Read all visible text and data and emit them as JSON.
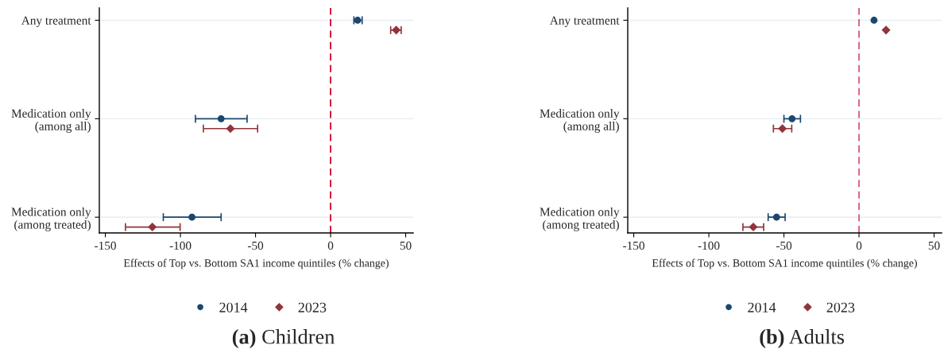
{
  "chart_data": [
    {
      "type": "scatter",
      "orientation": "horizontal",
      "title": "(a) Children",
      "xlabel": "Effects of Top vs. Bottom SA1 income quintiles (% change)",
      "categories": [
        "Any treatment",
        "Medication only\n(among all)",
        "Medication only\n(among treated)"
      ],
      "series": [
        {
          "name": "2014",
          "color": "#1a476f",
          "marker": "circle",
          "values": [
            18,
            -72.9,
            -92.3
          ],
          "errors": [
            [
              15.5,
              21
            ],
            [
              -90,
              -55.6
            ],
            [
              -111.4,
              -72.9
            ]
          ]
        },
        {
          "name": "2023",
          "color": "#90353b",
          "marker": "diamond",
          "values": [
            43.7,
            -66.7,
            -118.7
          ],
          "errors": [
            [
              40,
              47
            ],
            [
              -84.7,
              -48.6
            ],
            [
              -136.6,
              -100.2
            ]
          ]
        }
      ],
      "xlim": [
        -154,
        55
      ],
      "xticks": [
        {
          "value": -150,
          "label": "-150"
        },
        {
          "value": -100,
          "label": "-100"
        },
        {
          "value": -50,
          "label": "-50"
        },
        0,
        50
      ],
      "ref_lines": [
        {
          "axis": "x",
          "value": 0,
          "color": "#d6002b",
          "line_style": "dashed"
        }
      ],
      "grid": "y",
      "legend": "bottom"
    },
    {
      "type": "scatter",
      "orientation": "horizontal",
      "title": "(b) Adults",
      "xlabel": "Effects of Top vs. Bottom SA1 income quintiles (% change)",
      "categories": [
        "Any treatment",
        "Medication only\n(among all)",
        "Medication only\n(among treated)"
      ],
      "series": [
        {
          "name": "2014",
          "color": "#1a476f",
          "marker": "circle",
          "values": [
            10,
            -44.6,
            -54.9
          ],
          "errors": [
            null,
            [
              -50,
              -39
            ],
            [
              -60.5,
              -49.2
            ]
          ]
        },
        {
          "name": "2023",
          "color": "#90353b",
          "marker": "diamond",
          "values": [
            18,
            -51,
            -70.4
          ],
          "errors": [
            null,
            [
              -57,
              -44.8
            ],
            [
              -77.3,
              -63.5
            ]
          ]
        }
      ],
      "xlim": [
        -154,
        55
      ],
      "xticks": [
        {
          "value": -150,
          "label": "-150"
        },
        {
          "value": -100,
          "label": "-100"
        },
        {
          "value": -50,
          "label": "-50"
        },
        0,
        50
      ],
      "ref_lines": [
        {
          "axis": "x",
          "value": 0,
          "color": "#d9577a",
          "line_style": "dashed"
        }
      ],
      "grid": "y",
      "legend": "bottom"
    }
  ]
}
